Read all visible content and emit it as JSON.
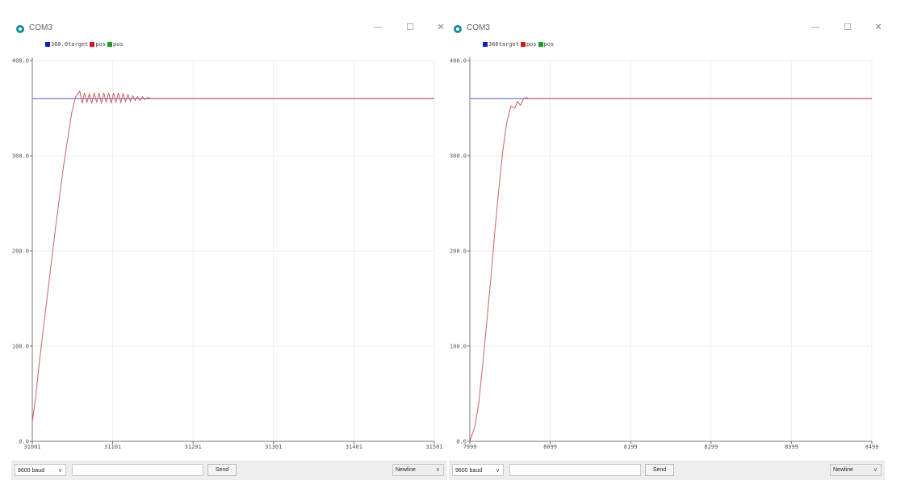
{
  "windows": [
    {
      "id": "left",
      "title": "COM3",
      "legend": [
        {
          "label": "360.0target",
          "color": "#1020c8"
        },
        {
          "label": "pos",
          "color": "#d01818"
        },
        {
          "label": "pos",
          "color": "#18a018"
        }
      ],
      "controls": {
        "minimize": "—",
        "maximize": "☐",
        "close": "✕"
      },
      "bottom": {
        "baud": "9600 baud",
        "input_value": "",
        "send_label": "Send",
        "line_ending": "Newline"
      },
      "chart_data": {
        "type": "line",
        "ylim": [
          0,
          400
        ],
        "y_ticks": [
          "0.0",
          "100.0",
          "200.0",
          "300.0",
          "400.0"
        ],
        "xlim": [
          31001,
          31501
        ],
        "x_ticks": [
          "31001",
          "31101",
          "31201",
          "31301",
          "31401",
          "31501"
        ],
        "grid": true,
        "series": [
          {
            "name": "360.0target",
            "color": "#4a5bc8",
            "x": [
              31001,
              31501
            ],
            "y": [
              360,
              360
            ]
          },
          {
            "name": "pos",
            "color": "#d06060",
            "x": [
              31001,
              31005,
              31010,
              31020,
              31030,
              31040,
              31050,
              31055,
              31060,
              31063,
              31066,
              31069,
              31072,
              31075,
              31078,
              31081,
              31084,
              31087,
              31090,
              31093,
              31096,
              31099,
              31102,
              31105,
              31108,
              31111,
              31114,
              31117,
              31120,
              31123,
              31126,
              31129,
              31132,
              31135,
              31138,
              31141,
              31144,
              31150,
              31200,
              31300,
              31400,
              31501
            ],
            "y": [
              20,
              45,
              85,
              155,
              225,
              290,
              345,
              362,
              368,
              355,
              366,
              356,
              365,
              355,
              366,
              356,
              366,
              355,
              366,
              356,
              366,
              355,
              366,
              356,
              366,
              356,
              365,
              357,
              364,
              357,
              363,
              358,
              362,
              358,
              362,
              359,
              361,
              360,
              360,
              360,
              360,
              360
            ]
          }
        ]
      }
    },
    {
      "id": "right",
      "title": "COM3",
      "legend": [
        {
          "label": "360target",
          "color": "#1020c8"
        },
        {
          "label": "pos",
          "color": "#d01818"
        },
        {
          "label": "pos",
          "color": "#18a018"
        }
      ],
      "controls": {
        "minimize": "—",
        "maximize": "☐",
        "close": "✕"
      },
      "bottom": {
        "baud": "9600 baud",
        "input_value": "",
        "send_label": "Send",
        "line_ending": "Newline"
      },
      "chart_data": {
        "type": "line",
        "ylim": [
          0,
          400
        ],
        "y_ticks": [
          "0.0",
          "100.0",
          "200.0",
          "300.0",
          "400.0"
        ],
        "xlim": [
          7999,
          8499
        ],
        "x_ticks": [
          "7999",
          "8099",
          "8199",
          "8299",
          "8399",
          "8499"
        ],
        "grid": true,
        "series": [
          {
            "name": "360target",
            "color": "#4a5bc8",
            "x": [
              7999,
              8499
            ],
            "y": [
              360,
              360
            ]
          },
          {
            "name": "pos",
            "color": "#d06060",
            "x": [
              7999,
              8005,
              8010,
              8015,
              8020,
              8025,
              8030,
              8035,
              8040,
              8045,
              8050,
              8055,
              8058,
              8062,
              8066,
              8069,
              8072,
              8080,
              8150,
              8250,
              8350,
              8499
            ],
            "y": [
              0,
              15,
              40,
              80,
              125,
              170,
              220,
              265,
              305,
              335,
              352,
              350,
              357,
              353,
              360,
              361,
              360,
              360,
              360,
              360,
              360,
              360
            ]
          }
        ]
      }
    }
  ]
}
